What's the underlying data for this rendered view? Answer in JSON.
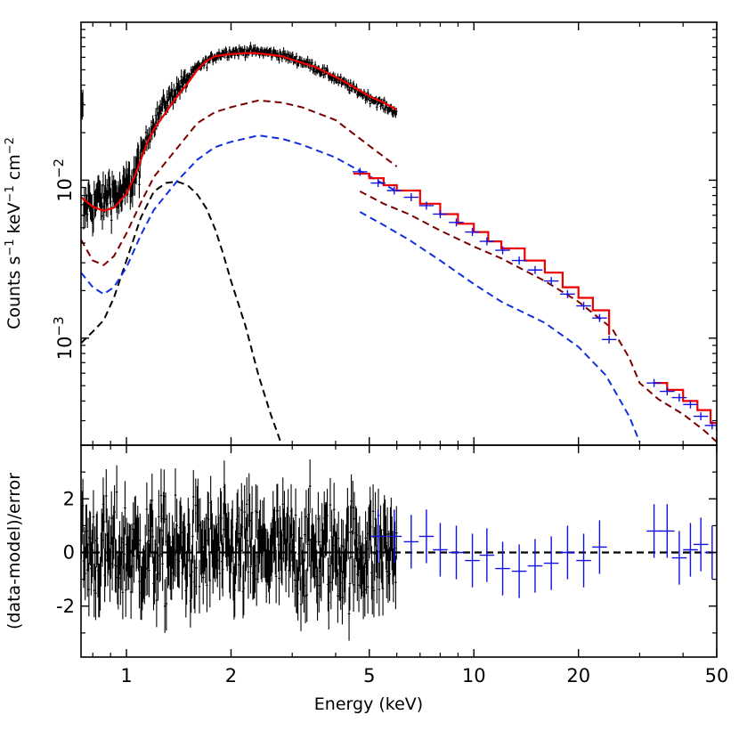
{
  "chart_data": [
    {
      "type": "line",
      "panel": "spectrum",
      "x_scale": "log",
      "y_scale": "log",
      "xlim": [
        0.74,
        50
      ],
      "ylim": [
        0.00021,
        0.1
      ],
      "grid": false,
      "ylabel_main": "Counts s",
      "ylabel_sup1": "−1",
      "ylabel_mid": " keV",
      "ylabel_sup2": "−1",
      "ylabel_end": " cm",
      "ylabel_sup3": "−2",
      "y_ticks": [
        {
          "value": 0.01,
          "base": "10",
          "exp": "−2"
        },
        {
          "value": 0.001,
          "base": "10",
          "exp": "−3"
        }
      ],
      "colors": {
        "data_soft": "#000000",
        "data_hard": "#1010e0",
        "total_model": "#ee0000",
        "component_1": "#7a0000",
        "component_2": "#1030e0",
        "component_3": "#000000"
      },
      "series": [
        {
          "role": "data_soft",
          "x_range": [
            0.74,
            6.0
          ],
          "points": [
            [
              0.75,
              0.0061
            ],
            [
              0.78,
              0.0075
            ],
            [
              0.8,
              0.0068
            ],
            [
              0.83,
              0.0079
            ],
            [
              0.86,
              0.0071
            ],
            [
              0.89,
              0.0088
            ],
            [
              0.92,
              0.0082
            ],
            [
              0.95,
              0.0078
            ],
            [
              0.98,
              0.0083
            ],
            [
              1.0,
              0.0092
            ],
            [
              1.04,
              0.0098
            ],
            [
              1.08,
              0.0122
            ],
            [
              1.12,
              0.0162
            ],
            [
              1.17,
              0.0205
            ],
            [
              1.22,
              0.025
            ],
            [
              1.28,
              0.03
            ],
            [
              1.34,
              0.034
            ],
            [
              1.4,
              0.038
            ],
            [
              1.47,
              0.042
            ],
            [
              1.54,
              0.047
            ],
            [
              1.6,
              0.052
            ],
            [
              1.7,
              0.056
            ],
            [
              1.8,
              0.061
            ],
            [
              1.9,
              0.064
            ],
            [
              2.0,
              0.065
            ],
            [
              2.1,
              0.065
            ],
            [
              2.25,
              0.066
            ],
            [
              2.4,
              0.065
            ],
            [
              2.6,
              0.064
            ],
            [
              2.8,
              0.062
            ],
            [
              3.0,
              0.059
            ],
            [
              3.3,
              0.055
            ],
            [
              3.6,
              0.05
            ],
            [
              4.0,
              0.044
            ],
            [
              4.4,
              0.039
            ],
            [
              4.8,
              0.035
            ],
            [
              5.2,
              0.032
            ],
            [
              5.6,
              0.029
            ],
            [
              6.0,
              0.027
            ]
          ]
        },
        {
          "role": "data_hard",
          "points": [
            [
              4.7,
              0.0113
            ],
            [
              5.3,
              0.0096
            ],
            [
              5.9,
              0.0086
            ],
            [
              6.6,
              0.0078
            ],
            [
              7.3,
              0.0069
            ],
            [
              8.0,
              0.0061
            ],
            [
              8.9,
              0.0054
            ],
            [
              9.9,
              0.0047
            ],
            [
              10.9,
              0.0041
            ],
            [
              12.1,
              0.0036
            ],
            [
              13.5,
              0.0031
            ],
            [
              15.0,
              0.0027
            ],
            [
              16.7,
              0.0023
            ],
            [
              18.6,
              0.0019
            ],
            [
              20.7,
              0.0016
            ],
            [
              23.0,
              0.00134
            ],
            [
              24.5,
              0.00098
            ],
            [
              33.0,
              0.00052
            ],
            [
              36.0,
              0.00046
            ],
            [
              39.0,
              0.00042
            ],
            [
              42.0,
              0.00038
            ],
            [
              45.0,
              0.00032
            ],
            [
              48.5,
              0.00028
            ]
          ]
        },
        {
          "role": "total_model",
          "segments": [
            [
              [
                0.74,
                0.0078
              ],
              [
                0.8,
                0.0068
              ],
              [
                0.86,
                0.0064
              ],
              [
                0.92,
                0.0067
              ],
              [
                1.0,
                0.0082
              ],
              [
                1.05,
                0.0103
              ],
              [
                1.1,
                0.0135
              ],
              [
                1.15,
                0.0175
              ],
              [
                1.2,
                0.021
              ],
              [
                1.3,
                0.027
              ],
              [
                1.4,
                0.034
              ],
              [
                1.5,
                0.041
              ],
              [
                1.6,
                0.05
              ],
              [
                1.7,
                0.057
              ],
              [
                1.8,
                0.061
              ],
              [
                2.0,
                0.063
              ],
              [
                2.3,
                0.064
              ],
              [
                2.5,
                0.063
              ],
              [
                2.8,
                0.061
              ],
              [
                3.0,
                0.058
              ],
              [
                3.5,
                0.052
              ],
              [
                4.0,
                0.045
              ],
              [
                4.5,
                0.039
              ],
              [
                5.0,
                0.034
              ],
              [
                5.5,
                0.031
              ],
              [
                6.0,
                0.028
              ]
            ],
            [
              [
                4.5,
                0.011
              ],
              [
                5.0,
                0.0103
              ],
              [
                5.5,
                0.0093
              ],
              [
                6.0,
                0.0086
              ],
              [
                7.0,
                0.0071
              ],
              [
                8.0,
                0.0061
              ],
              [
                9.0,
                0.0053
              ],
              [
                10.0,
                0.0047
              ],
              [
                11.0,
                0.0041
              ],
              [
                12.0,
                0.0037
              ],
              [
                14.0,
                0.0031
              ],
              [
                16.0,
                0.0026
              ],
              [
                18.0,
                0.0021
              ],
              [
                20.0,
                0.0018
              ],
              [
                22.0,
                0.0015
              ],
              [
                24.5,
                0.00105
              ]
            ],
            [
              [
                33.0,
                0.00052
              ],
              [
                36.0,
                0.00047
              ],
              [
                40.0,
                0.0004
              ],
              [
                44.0,
                0.00035
              ],
              [
                48.0,
                0.00029
              ],
              [
                50.0,
                0.00026
              ]
            ]
          ]
        },
        {
          "role": "component_1",
          "segments": [
            [
              [
                0.74,
                0.0042
              ],
              [
                0.8,
                0.0031
              ],
              [
                0.86,
                0.0029
              ],
              [
                0.92,
                0.0033
              ],
              [
                1.0,
                0.0046
              ],
              [
                1.1,
                0.0072
              ],
              [
                1.2,
                0.0105
              ],
              [
                1.4,
                0.016
              ],
              [
                1.6,
                0.023
              ],
              [
                1.8,
                0.027
              ],
              [
                2.0,
                0.029
              ],
              [
                2.4,
                0.032
              ],
              [
                2.8,
                0.031
              ],
              [
                3.2,
                0.029
              ],
              [
                4.0,
                0.024
              ],
              [
                5.0,
                0.0165
              ],
              [
                6.0,
                0.0122
              ]
            ],
            [
              [
                4.7,
                0.0085
              ],
              [
                5.5,
                0.0071
              ],
              [
                6.5,
                0.0061
              ],
              [
                8.0,
                0.0048
              ],
              [
                10.0,
                0.0038
              ],
              [
                12.0,
                0.0032
              ],
              [
                16.0,
                0.0023
              ],
              [
                20.0,
                0.0017
              ],
              [
                25.0,
                0.00115
              ],
              [
                28.0,
                0.00075
              ],
              [
                30.0,
                0.00052
              ],
              [
                34.0,
                0.00041
              ],
              [
                40.0,
                0.00033
              ],
              [
                46.0,
                0.00026
              ],
              [
                50.0,
                0.00022
              ]
            ]
          ]
        },
        {
          "role": "component_2",
          "segments": [
            [
              [
                0.74,
                0.0026
              ],
              [
                0.8,
                0.0021
              ],
              [
                0.86,
                0.0019
              ],
              [
                0.92,
                0.0021
              ],
              [
                1.0,
                0.0028
              ],
              [
                1.1,
                0.0045
              ],
              [
                1.2,
                0.0065
              ],
              [
                1.4,
                0.0099
              ],
              [
                1.6,
                0.0135
              ],
              [
                1.8,
                0.0162
              ],
              [
                2.0,
                0.0175
              ],
              [
                2.4,
                0.0192
              ],
              [
                2.8,
                0.0183
              ],
              [
                3.2,
                0.0168
              ],
              [
                4.0,
                0.0139
              ],
              [
                5.0,
                0.0106
              ],
              [
                6.0,
                0.0085
              ]
            ],
            [
              [
                4.7,
                0.0063
              ],
              [
                5.5,
                0.0052
              ],
              [
                6.5,
                0.0042
              ],
              [
                8.0,
                0.0031
              ],
              [
                10.0,
                0.0022
              ],
              [
                12.0,
                0.0017
              ],
              [
                16.0,
                0.00125
              ],
              [
                20.0,
                0.00088
              ],
              [
                24.0,
                0.00058
              ],
              [
                28.0,
                0.00032
              ],
              [
                30.0,
                0.00022
              ]
            ]
          ]
        },
        {
          "role": "component_3",
          "segments": [
            [
              [
                0.74,
                0.00093
              ],
              [
                0.8,
                0.0011
              ],
              [
                0.86,
                0.0013
              ],
              [
                0.92,
                0.0018
              ],
              [
                1.0,
                0.0031
              ],
              [
                1.1,
                0.0058
              ],
              [
                1.2,
                0.0085
              ],
              [
                1.3,
                0.0096
              ],
              [
                1.4,
                0.0098
              ],
              [
                1.5,
                0.0093
              ],
              [
                1.6,
                0.0081
              ],
              [
                1.7,
                0.0066
              ],
              [
                1.8,
                0.0049
              ],
              [
                1.9,
                0.0034
              ],
              [
                2.0,
                0.0023
              ],
              [
                2.2,
                0.0012
              ],
              [
                2.4,
                0.00058
              ],
              [
                2.6,
                0.00033
              ],
              [
                2.8,
                0.00021
              ]
            ]
          ]
        }
      ]
    },
    {
      "type": "scatter",
      "panel": "residuals",
      "x_scale": "log",
      "xlim": [
        0.74,
        50
      ],
      "ylim": [
        -3.9,
        4.0
      ],
      "grid": false,
      "xlabel": "Energy (keV)",
      "ylabel": "(data-model)/error",
      "x_ticks": [
        {
          "value": 1,
          "label": "1"
        },
        {
          "value": 2,
          "label": "2"
        },
        {
          "value": 5,
          "label": "5"
        },
        {
          "value": 10,
          "label": "10"
        },
        {
          "value": 20,
          "label": "20"
        },
        {
          "value": 50,
          "label": "50"
        }
      ],
      "y_ticks": [
        {
          "value": 2,
          "label": "2"
        },
        {
          "value": 0,
          "label": "0"
        },
        {
          "value": -2,
          "label": "-2"
        }
      ],
      "zero_line": 0,
      "series": [
        {
          "role": "residual_soft",
          "x_range": [
            0.74,
            6.0
          ],
          "scatter_sigma": 1.0
        },
        {
          "role": "residual_hard",
          "points": [
            [
              5.3,
              0.6
            ],
            [
              5.9,
              0.6
            ],
            [
              6.6,
              0.4
            ],
            [
              7.3,
              0.6
            ],
            [
              8.0,
              0.1
            ],
            [
              8.9,
              0.0
            ],
            [
              9.9,
              -0.3
            ],
            [
              10.9,
              -0.1
            ],
            [
              12.1,
              -0.6
            ],
            [
              13.5,
              -0.7
            ],
            [
              15.0,
              -0.5
            ],
            [
              16.7,
              -0.4
            ],
            [
              18.6,
              0.0
            ],
            [
              20.7,
              -0.3
            ],
            [
              23.0,
              0.2
            ],
            [
              33.0,
              0.8
            ],
            [
              36.0,
              0.8
            ],
            [
              39.0,
              -0.2
            ],
            [
              42.0,
              0.1
            ],
            [
              45.0,
              0.3
            ],
            [
              48.5,
              0.0
            ]
          ]
        }
      ]
    }
  ]
}
